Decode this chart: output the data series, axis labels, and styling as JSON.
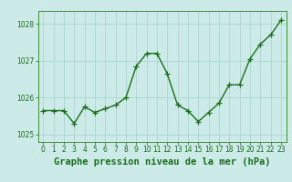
{
  "x": [
    0,
    1,
    2,
    3,
    4,
    5,
    6,
    7,
    8,
    9,
    10,
    11,
    12,
    13,
    14,
    15,
    16,
    17,
    18,
    19,
    20,
    21,
    22,
    23
  ],
  "y": [
    1025.65,
    1025.65,
    1025.65,
    1025.3,
    1025.75,
    1025.6,
    1025.7,
    1025.8,
    1026.0,
    1026.85,
    1027.2,
    1027.2,
    1026.65,
    1025.8,
    1025.65,
    1025.35,
    1025.6,
    1025.85,
    1026.35,
    1026.35,
    1027.05,
    1027.45,
    1027.7,
    1028.1
  ],
  "line_color": "#1a6e1a",
  "marker": "+",
  "marker_size": 4,
  "bg_color": "#cceae7",
  "grid_color": "#aad4d0",
  "xlabel": "Graphe pression niveau de la mer (hPa)",
  "xlabel_color": "#1a6e1a",
  "xlabel_fontsize": 7.5,
  "yticks": [
    1025,
    1026,
    1027,
    1028
  ],
  "xticks": [
    0,
    1,
    2,
    3,
    4,
    5,
    6,
    7,
    8,
    9,
    10,
    11,
    12,
    13,
    14,
    15,
    16,
    17,
    18,
    19,
    20,
    21,
    22,
    23
  ],
  "ylim": [
    1024.8,
    1028.35
  ],
  "xlim": [
    -0.5,
    23.5
  ],
  "tick_fontsize": 5.5,
  "line_width": 1.0,
  "spine_color": "#448844"
}
